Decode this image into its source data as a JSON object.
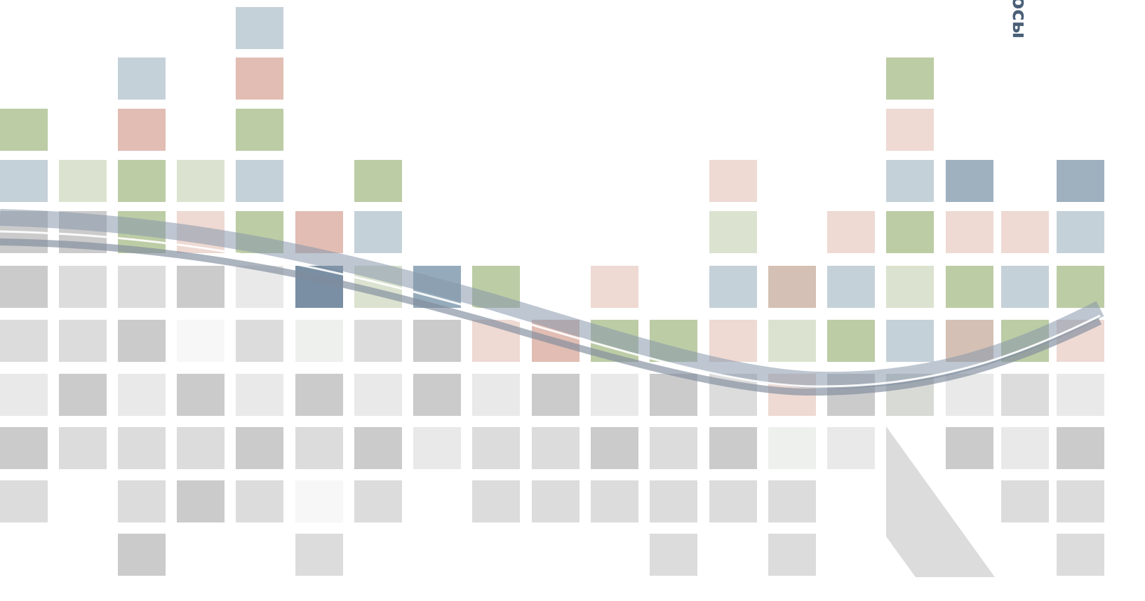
{
  "vertical_text": "осы"
}
